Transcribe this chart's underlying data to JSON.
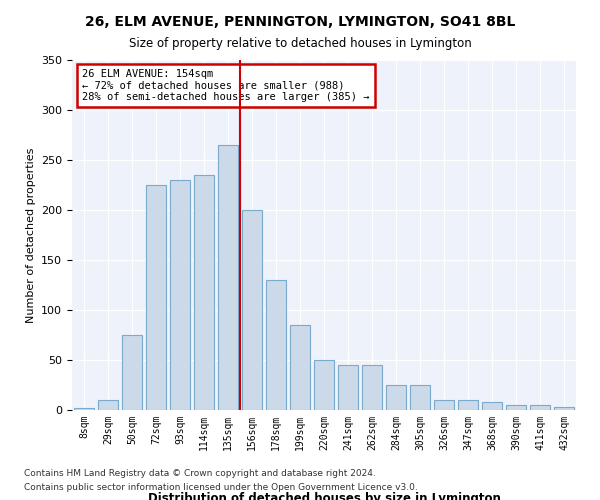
{
  "title": "26, ELM AVENUE, PENNINGTON, LYMINGTON, SO41 8BL",
  "subtitle": "Size of property relative to detached houses in Lymington",
  "xlabel": "Distribution of detached houses by size in Lymington",
  "ylabel": "Number of detached properties",
  "bar_color": "#ccd9e8",
  "bar_edge_color": "#7aaace",
  "background_color": "#eef2fa",
  "annotation_text": "26 ELM AVENUE: 154sqm\n← 72% of detached houses are smaller (988)\n28% of semi-detached houses are larger (385) →",
  "vline_color": "#cc0000",
  "categories": [
    "8sqm",
    "29sqm",
    "50sqm",
    "72sqm",
    "93sqm",
    "114sqm",
    "135sqm",
    "156sqm",
    "178sqm",
    "199sqm",
    "220sqm",
    "241sqm",
    "262sqm",
    "284sqm",
    "305sqm",
    "326sqm",
    "347sqm",
    "368sqm",
    "390sqm",
    "411sqm",
    "432sqm"
  ],
  "values": [
    2,
    10,
    75,
    225,
    230,
    235,
    265,
    200,
    130,
    85,
    50,
    45,
    45,
    25,
    25,
    10,
    10,
    8,
    5,
    5,
    3
  ],
  "ylim": [
    0,
    350
  ],
  "yticks": [
    0,
    50,
    100,
    150,
    200,
    250,
    300,
    350
  ],
  "footer1": "Contains HM Land Registry data © Crown copyright and database right 2024.",
  "footer2": "Contains public sector information licensed under the Open Government Licence v3.0.",
  "vline_idx": 6.5
}
